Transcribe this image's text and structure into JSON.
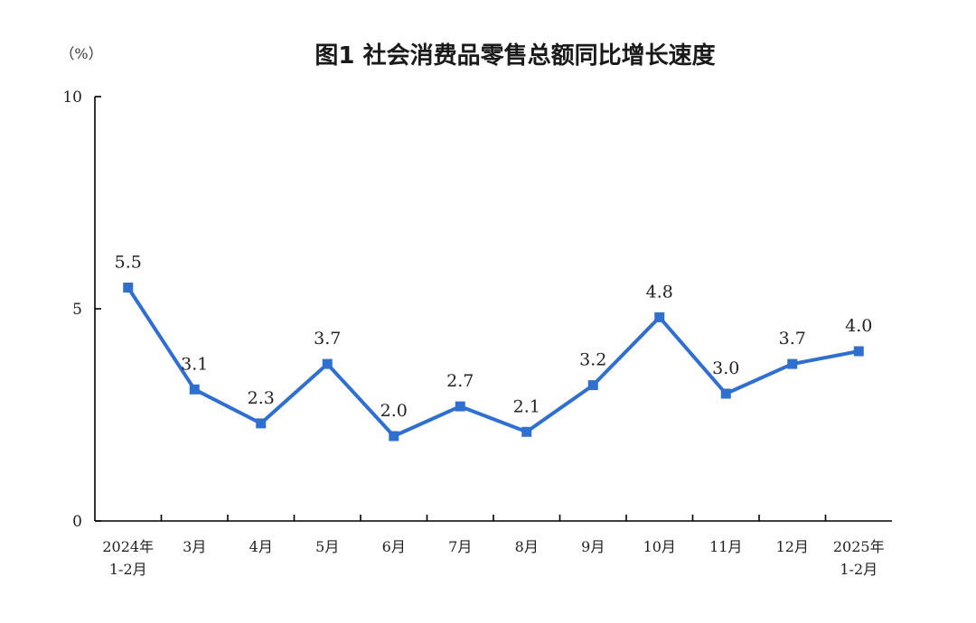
{
  "chart_data": {
    "type": "line",
    "title": "图1  社会消费品零售总额同比增长速度",
    "ylabel": "（%）",
    "ylim": [
      0,
      10
    ],
    "yticks": [
      0,
      5,
      10
    ],
    "categories": [
      [
        "2024年",
        "1-2月"
      ],
      [
        "3月"
      ],
      [
        "4月"
      ],
      [
        "5月"
      ],
      [
        "6月"
      ],
      [
        "7月"
      ],
      [
        "8月"
      ],
      [
        "9月"
      ],
      [
        "10月"
      ],
      [
        "11月"
      ],
      [
        "12月"
      ],
      [
        "2025年",
        "1-2月"
      ]
    ],
    "series": [
      {
        "values": [
          5.5,
          3.1,
          2.3,
          3.7,
          2.0,
          2.7,
          2.1,
          3.2,
          4.8,
          3.0,
          3.7,
          4.0
        ]
      }
    ],
    "data_labels": [
      "5.5",
      "3.1",
      "2.3",
      "3.7",
      "2.0",
      "2.7",
      "2.1",
      "3.2",
      "4.8",
      "3.0",
      "3.7",
      "4.0"
    ],
    "colors": {
      "series": "#2f6fd0"
    },
    "grid": false,
    "legend": "none"
  }
}
